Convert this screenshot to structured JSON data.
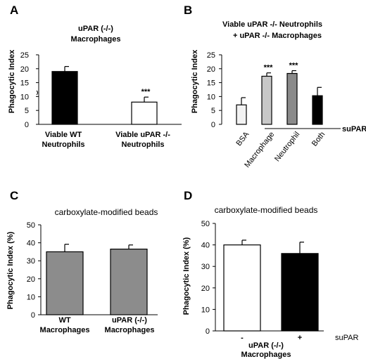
{
  "chart_data": [
    {
      "panel": "A",
      "type": "bar",
      "title": "uPAR (-/-) Macrophages",
      "title_lines": [
        "uPAR (-/-)",
        "Macrophages"
      ],
      "ylabel": "Phagocytic Index",
      "ylim": [
        0,
        25
      ],
      "yticks": [
        "0",
        "5",
        "10",
        "15",
        "20",
        "25"
      ],
      "categories": [
        "Viable WT Neutrophils",
        "Viable uPAR -/- Neutrophils"
      ],
      "category_lines": [
        [
          "Viable WT",
          "Neutrophils"
        ],
        [
          "Viable uPAR -/-",
          "Neutrophils"
        ]
      ],
      "values": [
        19,
        8
      ],
      "errors": [
        1.8,
        1.8
      ],
      "fills": [
        "#000000",
        "#ffffff"
      ],
      "significance": [
        "",
        "***"
      ]
    },
    {
      "panel": "B",
      "type": "bar",
      "title": "Viable uPAR -/- Neutrophils + uPAR -/- Macrophages",
      "title_lines": [
        "Viable uPAR -/- Neutrophils",
        "+ uPAR -/-  Macrophages"
      ],
      "ylabel": "Phagocytic Index",
      "ylim": [
        0,
        25
      ],
      "yticks": [
        "0",
        "5",
        "10",
        "15",
        "20",
        "25"
      ],
      "categories": [
        "BSA",
        "Macrophage",
        "Neutrophil",
        "Both"
      ],
      "values": [
        7,
        17.3,
        18.3,
        10.3
      ],
      "errors": [
        2.6,
        1.2,
        1.0,
        3.0
      ],
      "fills": [
        "#f2f2f2",
        "#c8c8c8",
        "#8a8a8a",
        "#000000"
      ],
      "significance": [
        "",
        "***",
        "***",
        ""
      ],
      "group_label": "suPAR"
    },
    {
      "panel": "C",
      "type": "bar",
      "title": "carboxylate-modified beads",
      "ylabel": "Phagocytic Index (%)",
      "ylim": [
        0,
        50
      ],
      "yticks": [
        "0",
        "10",
        "20",
        "30",
        "40",
        "50"
      ],
      "categories": [
        "WT Macrophages",
        "uPAR (-/-) Macrophages"
      ],
      "category_lines": [
        [
          "WT",
          "Macrophages"
        ],
        [
          "uPAR (-/-)",
          "Macrophages"
        ]
      ],
      "values": [
        35,
        36.5
      ],
      "errors": [
        4.2,
        2.3
      ],
      "fills": [
        "#8c8c8c",
        "#8c8c8c"
      ]
    },
    {
      "panel": "D",
      "type": "bar",
      "title": "carboxylate-modified beads",
      "ylabel": "Phagocytic Index (%)",
      "ylim": [
        0,
        50
      ],
      "yticks": [
        "0",
        "10",
        "20",
        "30",
        "40",
        "50"
      ],
      "categories": [
        "-",
        "+"
      ],
      "values": [
        40,
        36
      ],
      "errors": [
        2.2,
        5.3
      ],
      "fills": [
        "#ffffff",
        "#000000"
      ],
      "group_label": "uPAR (-/-) Macrophages",
      "group_label_lines": [
        "uPAR (-/-)",
        "Macrophages"
      ],
      "row_label": "suPAR"
    }
  ]
}
